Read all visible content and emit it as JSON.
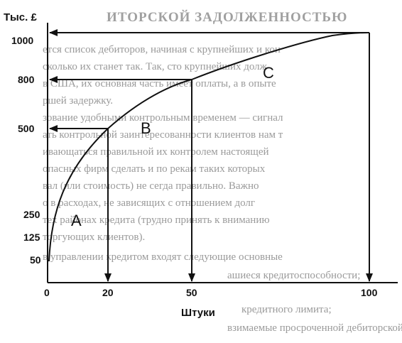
{
  "diagram": {
    "y_axis_label": "Тыс. £",
    "x_axis_label": "Штуки",
    "y_ticks": [
      "1000",
      "800",
      "500",
      "250",
      "125",
      "50"
    ],
    "x_ticks": [
      "0",
      "20",
      "50",
      "100"
    ],
    "regions": [
      "A",
      "B",
      "C"
    ]
  },
  "background_text": {
    "heading": "ИТОРСКОЙ ЗАДОЛЖЕННОСТЬЮ",
    "lines": [
      "ется список дебиторов, начиная с крупнейших и кон",
      "сколько их станет так. Так, сто крупнейших долж",
      "в США, их основная часть имеет оплаты, а в опыте",
      "ршей задержку.",
      "зование удобными контрольным временем — сигнал",
      "ать контрольной заинтересованности клиентов нам т",
      "ивающаться правильной их контролем настоящей",
      "опасных фирм сделать и по рекам таких которых",
      "вал (или стоимость) не сегда правильно. Важно",
      "о в расходах, не зависящих с отношением долг",
      "тех районах кредита (трудно принять к вниманию",
      "торгующих клиентов).",
      "в управлении кредитом входят следующие основные",
      "ашиеся кредитоспособности;",
      "кредитного лимита;",
      "взимаемые просроченной дебиторской задолженно"
    ]
  }
}
